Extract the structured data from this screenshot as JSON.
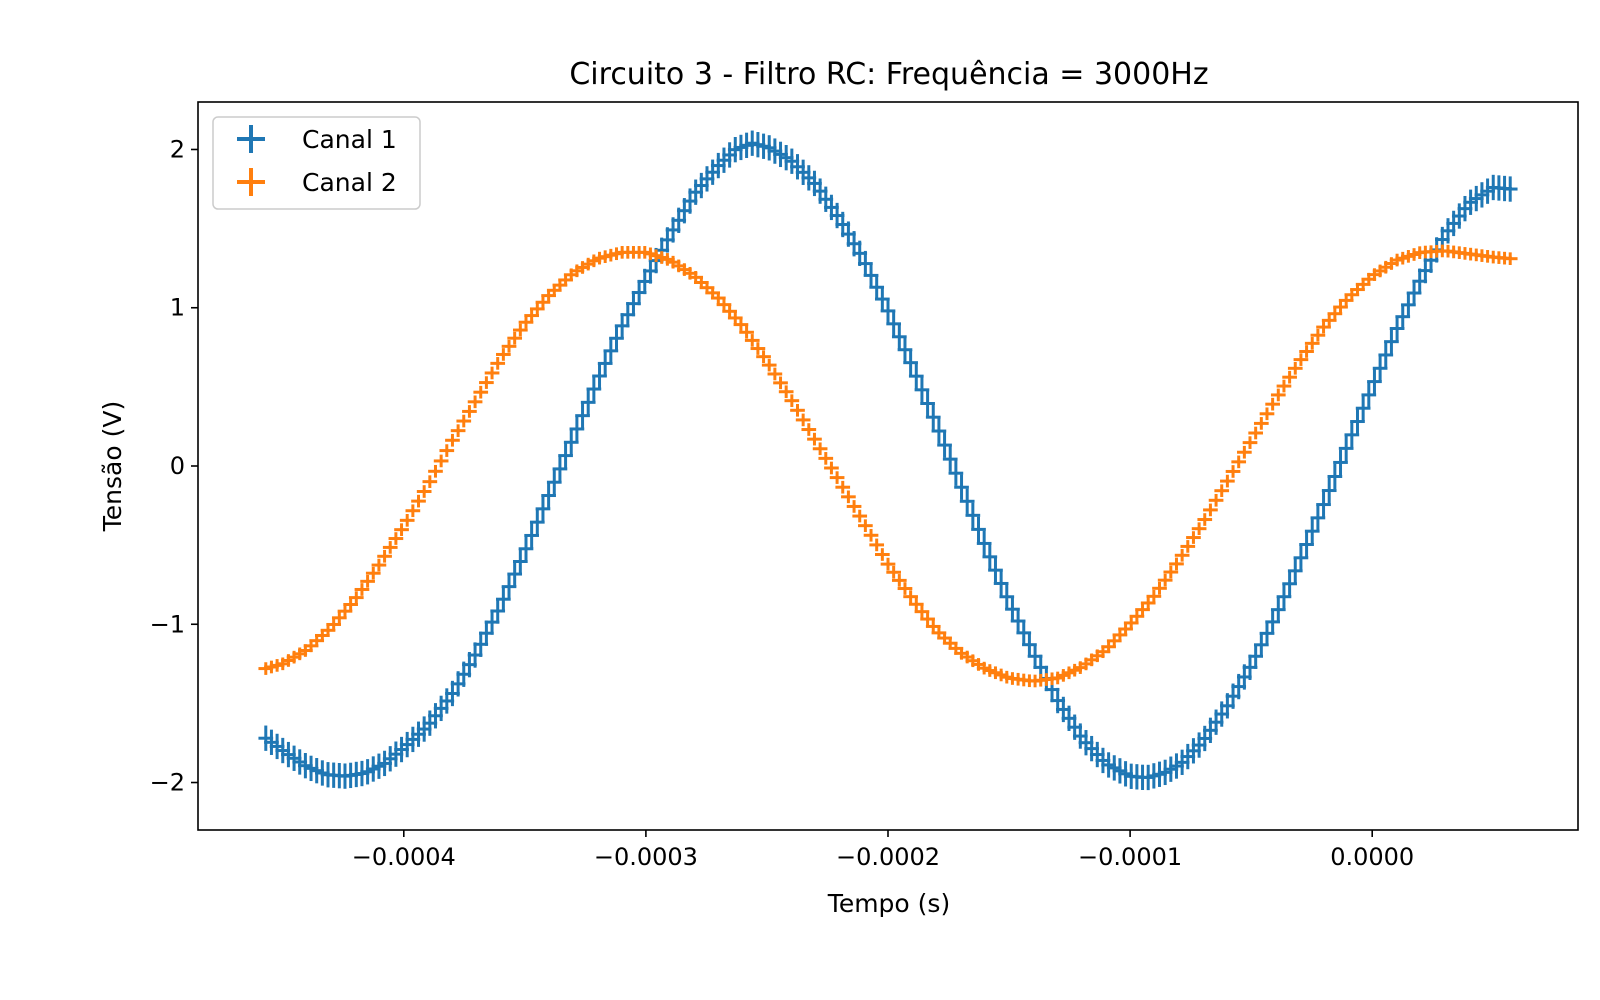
{
  "chart_data": {
    "type": "scatter",
    "title": "Circuito 3 - Filtro RC: Frequência = 3000Hz",
    "xlabel": "Tempo (s)",
    "ylabel": "Tensão (V)",
    "xlim": [
      -0.000485,
      8.5e-05
    ],
    "ylim": [
      -2.3,
      2.3
    ],
    "x_ticks": [
      -0.0004,
      -0.0003,
      -0.0002,
      -0.0001,
      0.0
    ],
    "x_tick_labels": [
      "−0.0004",
      "−0.0003",
      "−0.0002",
      "−0.0001",
      "0.0000"
    ],
    "y_ticks": [
      -2,
      -1,
      0,
      1,
      2
    ],
    "y_tick_labels": [
      "−2",
      "−1",
      "0",
      "1",
      "2"
    ],
    "legend_position": "top-left",
    "grid": false,
    "series": [
      {
        "name": "Canal 1",
        "color": "#1f77b4",
        "marker": "errorbar-cross",
        "x_error": 2e-06,
        "y_error": 0.08,
        "x": [
          -0.000457,
          -0.000448,
          -0.00044,
          -0.000432,
          -0.000424,
          -0.000416,
          -0.000408,
          -0.0004,
          -0.00039,
          -0.00038,
          -0.00037,
          -0.00036,
          -0.00035,
          -0.00034,
          -0.00033,
          -0.00032,
          -0.00031,
          -0.0003,
          -0.00029,
          -0.00028,
          -0.00027,
          -0.000263,
          -0.000256,
          -0.000249,
          -0.00024,
          -0.00023,
          -0.00022,
          -0.00021,
          -0.0002,
          -0.00019,
          -0.00018,
          -0.00017,
          -0.00016,
          -0.00015,
          -0.00014,
          -0.00013,
          -0.00012,
          -0.00011,
          -0.0001,
          -9.3e-05,
          -8.6e-05,
          -7.9e-05,
          -7e-05,
          -6e-05,
          -5e-05,
          -4e-05,
          -3e-05,
          -2e-05,
          -1e-05,
          0.0,
          1e-05,
          2e-05,
          3e-05,
          4e-05,
          5e-05,
          5.7e-05
        ],
        "y": [
          -1.72,
          -1.82,
          -1.9,
          -1.95,
          -1.96,
          -1.94,
          -1.88,
          -1.78,
          -1.64,
          -1.44,
          -1.18,
          -0.88,
          -0.54,
          -0.18,
          0.18,
          0.54,
          0.88,
          1.18,
          1.46,
          1.72,
          1.9,
          2.0,
          2.04,
          2.01,
          1.93,
          1.78,
          1.56,
          1.3,
          0.98,
          0.63,
          0.26,
          -0.12,
          -0.5,
          -0.86,
          -1.18,
          -1.48,
          -1.72,
          -1.88,
          -1.96,
          -1.97,
          -1.94,
          -1.88,
          -1.74,
          -1.52,
          -1.26,
          -0.95,
          -0.6,
          -0.24,
          0.14,
          0.5,
          0.86,
          1.18,
          1.46,
          1.66,
          1.76,
          1.75
        ]
      },
      {
        "name": "Canal 2",
        "color": "#ff7f0e",
        "marker": "errorbar-cross",
        "x_error": 2e-06,
        "y_error": 0.04,
        "x": [
          -0.000457,
          -0.00045,
          -0.00044,
          -0.00043,
          -0.00042,
          -0.00041,
          -0.0004,
          -0.00039,
          -0.00038,
          -0.00037,
          -0.00036,
          -0.00035,
          -0.00034,
          -0.00033,
          -0.00032,
          -0.00031,
          -0.0003,
          -0.00029,
          -0.00028,
          -0.00027,
          -0.00026,
          -0.00025,
          -0.00024,
          -0.00023,
          -0.00022,
          -0.00021,
          -0.0002,
          -0.00019,
          -0.00018,
          -0.00017,
          -0.00016,
          -0.00015,
          -0.00014,
          -0.00013,
          -0.00012,
          -0.00011,
          -0.0001,
          -9e-05,
          -8e-05,
          -7e-05,
          -6e-05,
          -5e-05,
          -4e-05,
          -3e-05,
          -2e-05,
          -1e-05,
          0.0,
          1e-05,
          2e-05,
          3e-05,
          4e-05,
          5e-05,
          5.7e-05
        ],
        "y": [
          -1.28,
          -1.25,
          -1.16,
          -1.02,
          -0.84,
          -0.62,
          -0.38,
          -0.12,
          0.16,
          0.42,
          0.68,
          0.9,
          1.08,
          1.22,
          1.31,
          1.35,
          1.35,
          1.3,
          1.2,
          1.06,
          0.88,
          0.66,
          0.42,
          0.16,
          -0.1,
          -0.36,
          -0.62,
          -0.84,
          -1.04,
          -1.18,
          -1.28,
          -1.34,
          -1.36,
          -1.34,
          -1.27,
          -1.16,
          -1.0,
          -0.82,
          -0.6,
          -0.36,
          -0.1,
          0.16,
          0.42,
          0.66,
          0.88,
          1.06,
          1.2,
          1.3,
          1.35,
          1.36,
          1.34,
          1.32,
          1.31
        ]
      }
    ]
  }
}
